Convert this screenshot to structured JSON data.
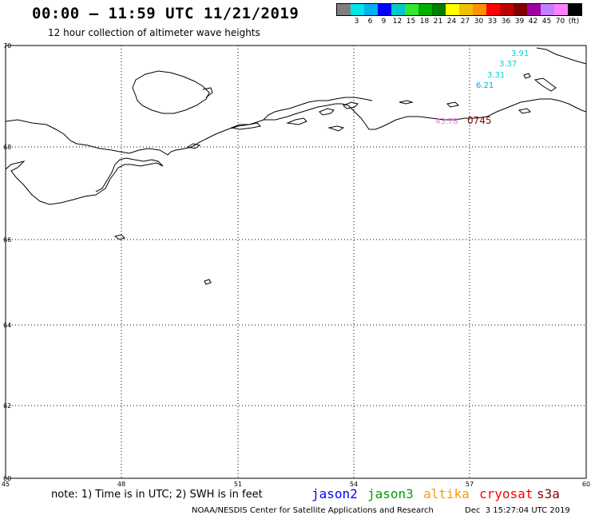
{
  "header": {
    "title": "00:00 – 11:59 UTC 11/21/2019",
    "subtitle": "12 hour collection of altimeter wave heights"
  },
  "color_scale": {
    "unit": "(ft)",
    "levels": [
      {
        "label": "",
        "color": "#7f7f7f"
      },
      {
        "label": "3",
        "color": "#00e5e5"
      },
      {
        "label": "6",
        "color": "#00b0f0"
      },
      {
        "label": "9",
        "color": "#0000ff"
      },
      {
        "label": "12",
        "color": "#00c8c8"
      },
      {
        "label": "15",
        "color": "#33e633"
      },
      {
        "label": "18",
        "color": "#00b000"
      },
      {
        "label": "21",
        "color": "#008000"
      },
      {
        "label": "24",
        "color": "#ffff00"
      },
      {
        "label": "27",
        "color": "#f0c000"
      },
      {
        "label": "30",
        "color": "#ff9000"
      },
      {
        "label": "33",
        "color": "#ff0000"
      },
      {
        "label": "36",
        "color": "#c00000"
      },
      {
        "label": "39",
        "color": "#800000"
      },
      {
        "label": "42",
        "color": "#a000a0"
      },
      {
        "label": "45",
        "color": "#c080ff"
      },
      {
        "label": "70",
        "color": "#ff80ff"
      },
      {
        "label": "",
        "color": "#000000"
      }
    ]
  },
  "axes": {
    "lon_labels": [
      "45",
      "48",
      "51",
      "54",
      "57",
      "60"
    ],
    "lat_labels": [
      "70",
      "68",
      "66",
      "64",
      "62",
      "60"
    ]
  },
  "observations": [
    {
      "text": "3.91",
      "color": "#00d0d0"
    },
    {
      "text": "3.37",
      "color": "#00d0d0"
    },
    {
      "text": "3.31",
      "color": "#00d0d0"
    },
    {
      "text": "6.21",
      "color": "#00a8e0"
    },
    {
      "text": "0745",
      "color": "#8b0000"
    },
    {
      "text": "43.78",
      "color": "#e080e0"
    }
  ],
  "footer": {
    "note": "note: 1) Time is in UTC; 2) SWH is in feet",
    "satellites": [
      {
        "name": "jason2",
        "color": "#0000ff"
      },
      {
        "name": "jason3",
        "color": "#00a000"
      },
      {
        "name": "altika",
        "color": "#ff9900"
      },
      {
        "name": "cryosat",
        "color": "#ff0000"
      },
      {
        "name": "s3a",
        "color": "#8b0000"
      }
    ],
    "credit": "NOAA/NESDIS Center for Satellite Applications and Research",
    "timestamp": "Dec  3 15:27:04 UTC 2019"
  }
}
